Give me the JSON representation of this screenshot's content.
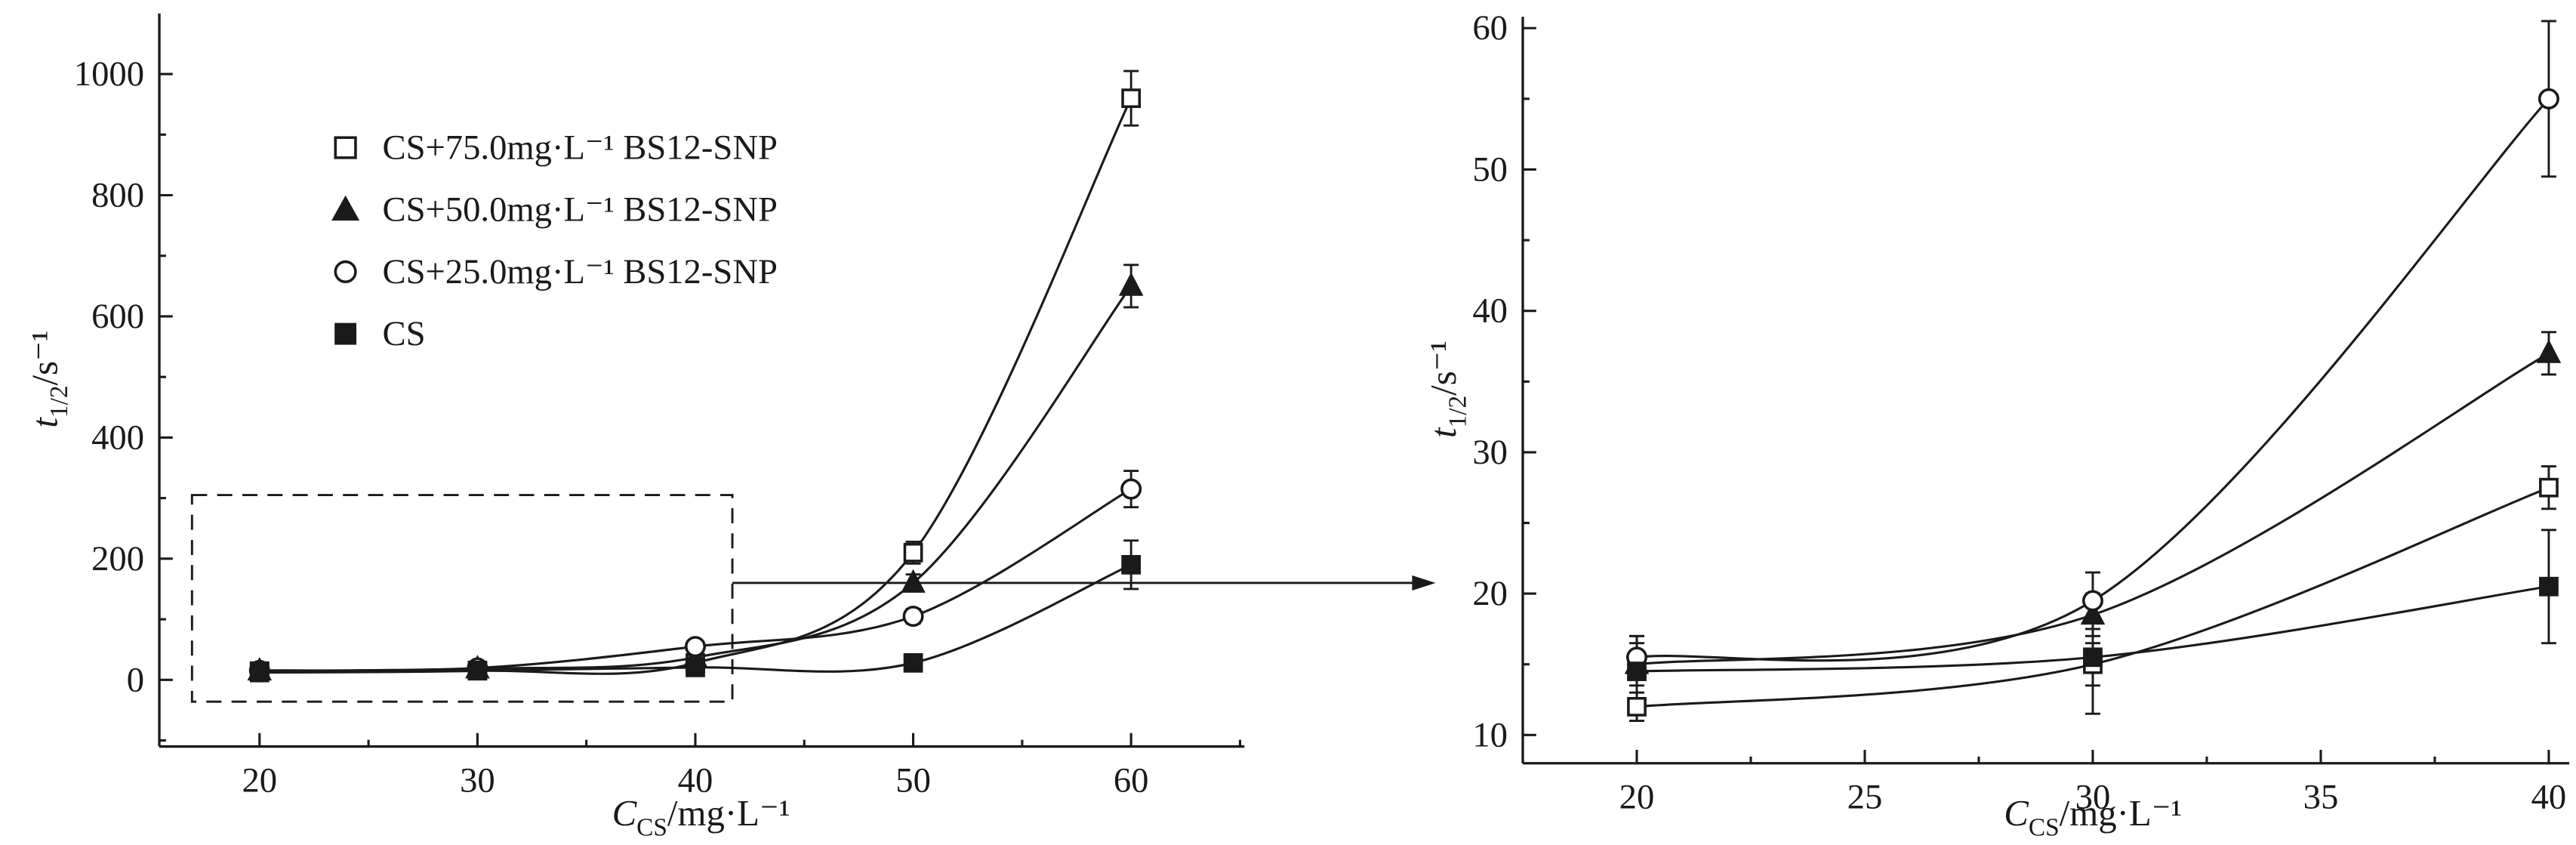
{
  "figure": {
    "background": "#ffffff",
    "ink": "#1a1a1a",
    "description": "Flocculation half-time versus chitosan concentration, full range (left) and zoomed low-concentration region (right)"
  },
  "chart_data": [
    {
      "id": "left",
      "type": "line",
      "x": [
        20,
        30,
        40,
        50,
        60
      ],
      "series": [
        {
          "name": "CS+75.0mg·L⁻¹ BS12-SNP",
          "marker": "open-square",
          "values": [
            12,
            15,
            28,
            210,
            960
          ],
          "errors": [
            3,
            3,
            4,
            18,
            45
          ]
        },
        {
          "name": "CS+50.0mg·L⁻¹ BS12-SNP",
          "marker": "filled-triangle",
          "values": [
            15,
            18.5,
            37,
            160,
            650
          ],
          "errors": [
            3,
            3,
            4,
            14,
            35
          ]
        },
        {
          "name": "CS+25.0mg·L⁻¹ BS12-SNP",
          "marker": "open-circle",
          "values": [
            15.5,
            19.5,
            55,
            105,
            315
          ],
          "errors": [
            3,
            3,
            5,
            12,
            30
          ]
        },
        {
          "name": "CS",
          "marker": "filled-square",
          "values": [
            14.5,
            15.5,
            20.5,
            28,
            190
          ],
          "errors": [
            3,
            4,
            4,
            10,
            40
          ]
        }
      ],
      "xlabel": {
        "var": "C",
        "sub": "CS",
        "unit": "/mg·L⁻¹"
      },
      "ylabel": {
        "var": "t",
        "sub": "1/2",
        "unit": "/s⁻¹"
      },
      "xlim": [
        15.4,
        65.2
      ],
      "ylim": [
        -110,
        1100
      ],
      "xticks": [
        20,
        30,
        40,
        50,
        60
      ],
      "yticks": [
        0,
        200,
        400,
        600,
        800,
        1000
      ],
      "xminor": 5,
      "yminor": 100,
      "legend_position": "upper-left",
      "annotation": {
        "dashed_box": {
          "x": [
            16.9,
            41.7
          ],
          "y": [
            -36,
            305
          ]
        },
        "arrow_y": 160
      }
    },
    {
      "id": "right",
      "type": "line",
      "x": [
        20,
        30,
        40
      ],
      "series": [
        {
          "name": "CS+75.0mg·L⁻¹ BS12-SNP",
          "marker": "open-square",
          "values": [
            12,
            15,
            27.5
          ],
          "errors": [
            1,
            1.5,
            1.5
          ]
        },
        {
          "name": "CS+50.0mg·L⁻¹ BS12-SNP",
          "marker": "filled-triangle",
          "values": [
            15,
            18.5,
            37
          ],
          "errors": [
            1.5,
            1.5,
            1.5
          ]
        },
        {
          "name": "CS+25.0mg·L⁻¹ BS12-SNP",
          "marker": "open-circle",
          "values": [
            15.5,
            19.5,
            55
          ],
          "errors": [
            1.5,
            2,
            5.5
          ]
        },
        {
          "name": "CS",
          "marker": "filled-square",
          "values": [
            14.5,
            15.5,
            20.5
          ],
          "errors": [
            2.5,
            4,
            4
          ]
        }
      ],
      "xlabel": {
        "var": "C",
        "sub": "CS",
        "unit": "/mg·L⁻¹"
      },
      "ylabel": {
        "var": "t",
        "sub": "1/2",
        "unit": "/s⁻¹"
      },
      "xlim": [
        17.5,
        40.45
      ],
      "ylim": [
        8,
        60.8
      ],
      "xticks": [
        20,
        25,
        30,
        35,
        40
      ],
      "yticks": [
        10,
        20,
        30,
        40,
        50,
        60
      ],
      "xminor": 2.5,
      "yminor": 5,
      "legend_position": "none"
    }
  ]
}
